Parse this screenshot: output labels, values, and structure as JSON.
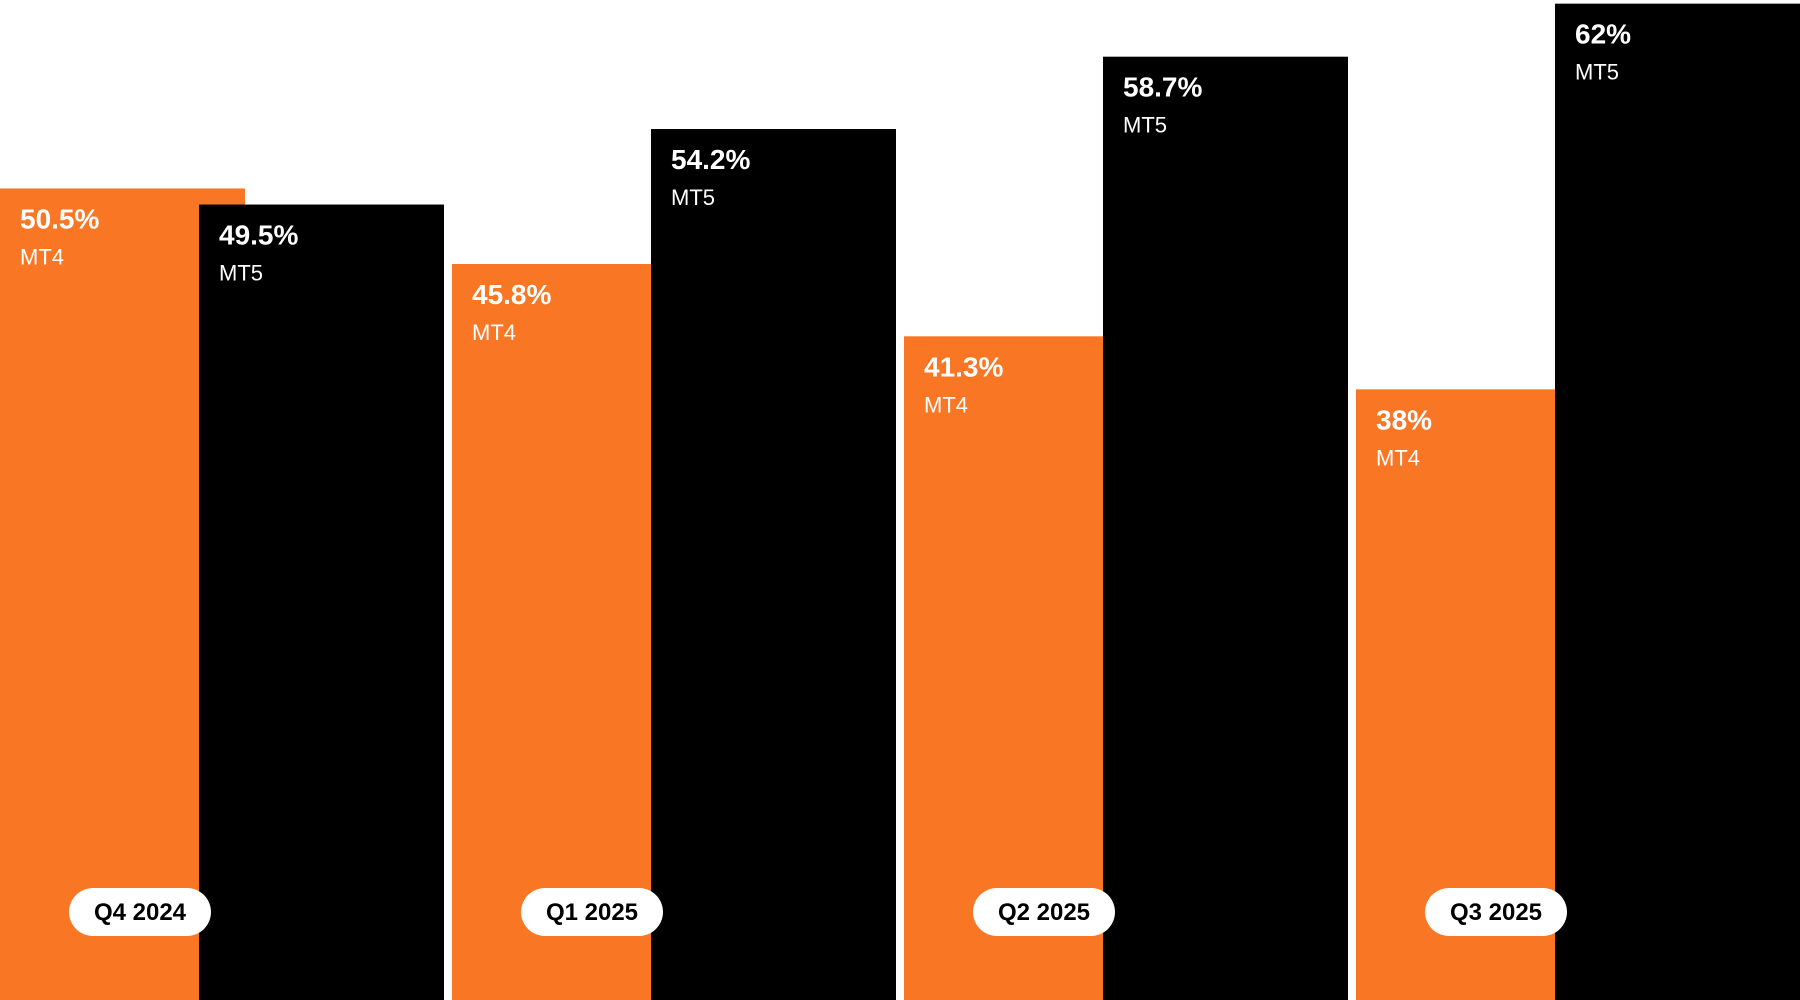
{
  "chart_data": {
    "type": "bar",
    "title": "",
    "xlabel": "",
    "ylabel": "",
    "ylim": [
      0,
      63
    ],
    "grid": false,
    "categories": [
      "Q4 2024",
      "Q1 2025",
      "Q2 2025",
      "Q3 2025"
    ],
    "series": [
      {
        "name": "MT4",
        "color": "#F97724",
        "values": [
          50.5,
          45.8,
          41.3,
          38
        ],
        "labels": [
          "50.5%",
          "45.8%",
          "41.3%",
          "38%"
        ]
      },
      {
        "name": "MT5",
        "color": "#000000",
        "values": [
          49.5,
          54.2,
          58.7,
          62
        ],
        "labels": [
          "49.5%",
          "54.2%",
          "58.7%",
          "62%"
        ]
      }
    ]
  },
  "colors": {
    "mt4": "#F97724",
    "mt5": "#000000",
    "label_text": "#FFFFFF",
    "pill_bg": "#FFFFFF",
    "pill_text": "#000000"
  }
}
